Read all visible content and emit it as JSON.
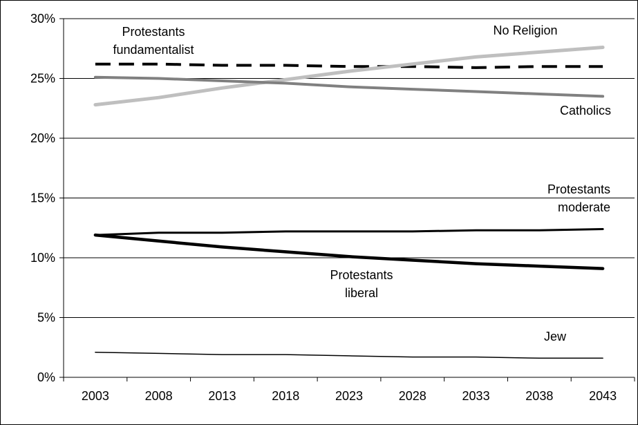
{
  "chart_data": {
    "type": "line",
    "title": "",
    "xlabel": "",
    "ylabel": "",
    "x": [
      "2003",
      "2008",
      "2013",
      "2018",
      "2023",
      "2028",
      "2033",
      "2038",
      "2043"
    ],
    "ylim": [
      0,
      30
    ],
    "yticks": [
      "0%",
      "5%",
      "10%",
      "15%",
      "20%",
      "25%",
      "30%"
    ],
    "grid": true,
    "legend": "none",
    "series": [
      {
        "name": "Protestants fundamentalist",
        "label_lines": [
          "Protestants",
          "fundamentalist"
        ],
        "values": [
          26.2,
          26.2,
          26.1,
          26.1,
          26.0,
          26.0,
          25.9,
          26.0,
          26.0
        ],
        "color": "#000000",
        "style": "dashed"
      },
      {
        "name": "No Religion",
        "label_lines": [
          "No Religion"
        ],
        "values": [
          22.8,
          23.4,
          24.2,
          24.9,
          25.6,
          26.2,
          26.8,
          27.2,
          27.6
        ],
        "color": "#bfbfbf",
        "style": "solid"
      },
      {
        "name": "Catholics",
        "label_lines": [
          "Catholics"
        ],
        "values": [
          25.1,
          25.0,
          24.8,
          24.6,
          24.3,
          24.1,
          23.9,
          23.7,
          23.5
        ],
        "color": "#808080",
        "style": "solid"
      },
      {
        "name": "Protestants moderate",
        "label_lines": [
          "Protestants",
          "moderate"
        ],
        "values": [
          11.9,
          12.1,
          12.1,
          12.2,
          12.2,
          12.2,
          12.3,
          12.3,
          12.4
        ],
        "color": "#000000",
        "style": "solid"
      },
      {
        "name": "Protestants liberal",
        "label_lines": [
          "Protestants",
          "liberal"
        ],
        "values": [
          11.9,
          11.4,
          10.9,
          10.5,
          10.1,
          9.8,
          9.5,
          9.3,
          9.1
        ],
        "color": "#000000",
        "style": "solid"
      },
      {
        "name": "Jew",
        "label_lines": [
          "Jew"
        ],
        "values": [
          2.1,
          2.0,
          1.9,
          1.9,
          1.8,
          1.7,
          1.7,
          1.6,
          1.6
        ],
        "color": "#000000",
        "style": "solid"
      }
    ]
  }
}
